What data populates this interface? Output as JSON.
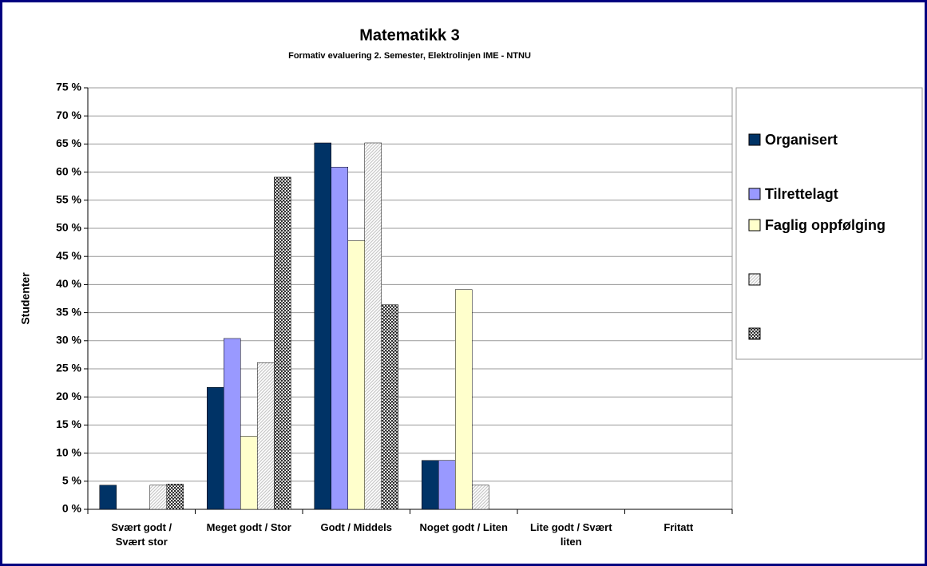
{
  "chart_data": {
    "type": "bar",
    "title": "Matematikk 3",
    "subtitle": "Formativ evaluering 2. Semester, Elektrolinjen IME - NTNU",
    "y_label": "Studenter",
    "categories": [
      "Svært godt / Svært stor",
      "Meget godt / Stor",
      "Godt / Middels",
      "Noget godt / Liten",
      "Lite godt / Svært liten",
      "Fritatt"
    ],
    "series": [
      {
        "name": "Organisert",
        "color": "#003366",
        "values": [
          4.3,
          21.7,
          65.2,
          8.7,
          0,
          0
        ]
      },
      {
        "name": "Tilrettelagt",
        "color": "#9999ff",
        "values": [
          0,
          30.4,
          60.9,
          8.7,
          0,
          0
        ]
      },
      {
        "name": "Faglig oppfølging",
        "color": "#ffffcc",
        "values": [
          0,
          13.0,
          47.8,
          39.1,
          0,
          0
        ]
      },
      {
        "color": "#c8c8c8",
        "pattern": "diagonal",
        "values": [
          4.3,
          26.1,
          65.2,
          4.3,
          0,
          0
        ]
      },
      {
        "color": "#333333",
        "pattern": "grid",
        "values": [
          4.5,
          59.1,
          36.4,
          0,
          0,
          0
        ]
      }
    ],
    "ylim": [
      0,
      75
    ],
    "yticks": [
      {
        "value": 0,
        "label": "0 %"
      },
      {
        "value": 5,
        "label": "5 %"
      },
      {
        "value": 10,
        "label": "10 %"
      },
      {
        "value": 15,
        "label": "15 %"
      },
      {
        "value": 20,
        "label": "20 %"
      },
      {
        "value": 25,
        "label": "25 %"
      },
      {
        "value": 30,
        "label": "30 %"
      },
      {
        "value": 35,
        "label": "35 %"
      },
      {
        "value": 40,
        "label": "40 %"
      },
      {
        "value": 45,
        "label": "45 %"
      },
      {
        "value": 50,
        "label": "50 %"
      },
      {
        "value": 55,
        "label": "55 %"
      },
      {
        "value": 60,
        "label": "60 %"
      },
      {
        "value": 65,
        "label": "65 %"
      },
      {
        "value": 70,
        "label": "70 %"
      },
      {
        "value": 75,
        "label": "75 %"
      }
    ],
    "grid": true,
    "legend": "right"
  }
}
